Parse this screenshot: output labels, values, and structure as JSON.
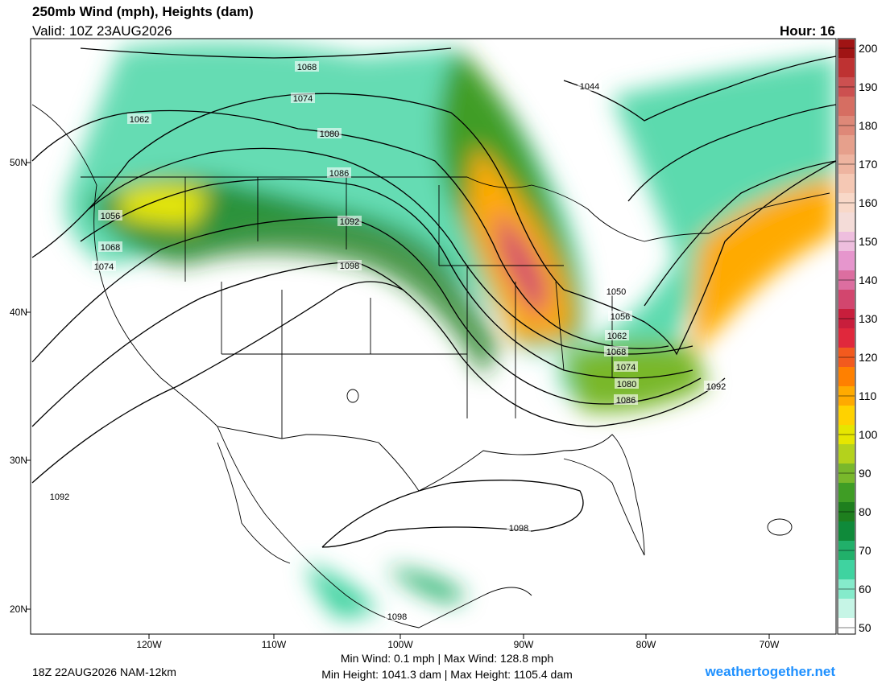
{
  "header": {
    "title": "250mb Wind (mph), Heights (dam)",
    "valid": "Valid: 10Z 23AUG2026",
    "hour": "Hour: 16"
  },
  "map": {
    "lat_labels": [
      "50N",
      "40N",
      "30N",
      "20N"
    ],
    "lon_labels": [
      "120W",
      "110W",
      "100W",
      "90W",
      "80W",
      "70W"
    ],
    "contour_labels": [
      "1068",
      "1074",
      "1080",
      "1086",
      "1092",
      "1098",
      "1062",
      "1056",
      "1068",
      "1074",
      "1044",
      "1050",
      "1056",
      "1062",
      "1068",
      "1074",
      "1080",
      "1086",
      "1092",
      "1092",
      "1098",
      "1098"
    ]
  },
  "colorbar": {
    "ticks": [
      200,
      190,
      180,
      170,
      160,
      150,
      140,
      130,
      120,
      110,
      100,
      90,
      80,
      70,
      60,
      50
    ],
    "colors": [
      "#ffffff",
      "#c6f5e6",
      "#85ebcb",
      "#3fd3a0",
      "#21b06a",
      "#0f8a3a",
      "#1e7f1e",
      "#3f9d25",
      "#79b82b",
      "#b4d21c",
      "#e6e600",
      "#ffd200",
      "#ffaa00",
      "#ff8000",
      "#f25a1e",
      "#e0283c",
      "#c81e3c",
      "#d2466e",
      "#dc6ea0",
      "#e696cd",
      "#eebede",
      "#f4dcd8",
      "#f8d8c8",
      "#f5c8b4",
      "#eeb4a0",
      "#e6a08c",
      "#de8878",
      "#d66e62",
      "#cc5050",
      "#be3232",
      "#a01414"
    ]
  },
  "footer": {
    "run": "18Z 22AUG2026 NAM-12km",
    "wind": "Min Wind:   0.1 mph | Max Wind: 128.8 mph",
    "height": "Min Height: 1041.3 dam | Max Height: 1105.4 dam",
    "site": "weathertogether.net"
  }
}
